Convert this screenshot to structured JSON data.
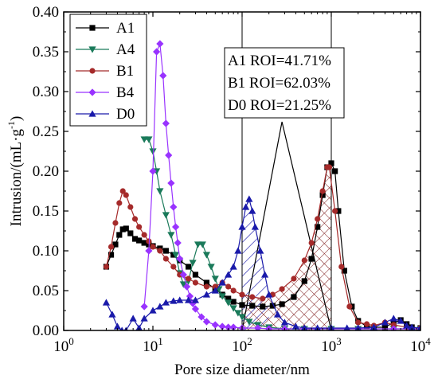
{
  "chart_data": {
    "type": "line",
    "title": "",
    "xlabel": "Pore size diameter/nm",
    "ylabel_main": "Intrusion/(mL·g",
    "ylabel_sup": "-1",
    "ylabel_close": ")",
    "xscale": "log",
    "xlim": [
      1,
      10000
    ],
    "ylim": [
      0,
      0.4
    ],
    "x_ticks": [
      {
        "value": 1,
        "base": "10",
        "exp": "0"
      },
      {
        "value": 10,
        "base": "10",
        "exp": "1"
      },
      {
        "value": 100,
        "base": "10",
        "exp": "2"
      },
      {
        "value": 1000,
        "base": "10",
        "exp": "3"
      },
      {
        "value": 10000,
        "base": "10",
        "exp": "4"
      }
    ],
    "y_ticks": [
      "0.00",
      "0.05",
      "0.10",
      "0.15",
      "0.20",
      "0.25",
      "0.30",
      "0.35",
      "0.40"
    ],
    "grid": false,
    "legend_position": "top-left",
    "series": [
      {
        "name": "A1",
        "color": "#000000",
        "marker": "square",
        "x": [
          3,
          3.4,
          3.8,
          4.2,
          4.6,
          5,
          5.6,
          6.3,
          7,
          8,
          9,
          10,
          12,
          14,
          17,
          20,
          25,
          30,
          40,
          50,
          60,
          70,
          80,
          100,
          130,
          170,
          220,
          280,
          380,
          500,
          600,
          700,
          800,
          900,
          1000,
          1100,
          1200,
          1400,
          1700,
          2000,
          2500,
          3000,
          4000,
          5000,
          6000,
          7000,
          8000,
          10000
        ],
        "y": [
          0.08,
          0.095,
          0.108,
          0.12,
          0.127,
          0.128,
          0.122,
          0.115,
          0.113,
          0.11,
          0.108,
          0.106,
          0.103,
          0.1,
          0.095,
          0.088,
          0.08,
          0.07,
          0.06,
          0.052,
          0.045,
          0.04,
          0.036,
          0.032,
          0.031,
          0.03,
          0.031,
          0.033,
          0.042,
          0.062,
          0.09,
          0.13,
          0.17,
          0.205,
          0.21,
          0.2,
          0.15,
          0.075,
          0.03,
          0.012,
          0.005,
          0.004,
          0.004,
          0.01,
          0.013,
          0.008,
          0.004,
          0.003
        ]
      },
      {
        "name": "A4",
        "color": "#1a7a5a",
        "marker": "triangle-down",
        "x": [
          8,
          9,
          10,
          11,
          12,
          14,
          16,
          18,
          20,
          22,
          25,
          28,
          32,
          36,
          40,
          45,
          50,
          55,
          60,
          70,
          80,
          90,
          100,
          120,
          150,
          200,
          300,
          500,
          1000,
          2000,
          5000,
          10000
        ],
        "y": [
          0.24,
          0.24,
          0.225,
          0.2,
          0.175,
          0.145,
          0.12,
          0.095,
          0.072,
          0.058,
          0.062,
          0.085,
          0.108,
          0.108,
          0.095,
          0.08,
          0.065,
          0.052,
          0.043,
          0.035,
          0.028,
          0.022,
          0.017,
          0.011,
          0.007,
          0.004,
          0.002,
          0.002,
          0.002,
          0.002,
          0.002,
          0.002
        ]
      },
      {
        "name": "B1",
        "color": "#a52a2a",
        "marker": "circle",
        "x": [
          3,
          3.4,
          3.8,
          4.2,
          4.6,
          5,
          5.6,
          6.3,
          7,
          8,
          9,
          10,
          12,
          14,
          17,
          20,
          25,
          30,
          40,
          50,
          60,
          70,
          80,
          100,
          130,
          170,
          220,
          280,
          380,
          500,
          600,
          700,
          800,
          900,
          950,
          1100,
          1300,
          1600,
          2000,
          2500,
          3000,
          4000,
          5000,
          7000,
          10000
        ],
        "y": [
          0.08,
          0.105,
          0.135,
          0.16,
          0.175,
          0.17,
          0.155,
          0.14,
          0.13,
          0.12,
          0.112,
          0.105,
          0.1,
          0.09,
          0.08,
          0.07,
          0.065,
          0.06,
          0.055,
          0.055,
          0.06,
          0.055,
          0.05,
          0.045,
          0.042,
          0.04,
          0.045,
          0.052,
          0.065,
          0.088,
          0.11,
          0.14,
          0.175,
          0.205,
          0.205,
          0.15,
          0.08,
          0.03,
          0.01,
          0.008,
          0.006,
          0.01,
          0.007,
          0.004,
          0.003
        ]
      },
      {
        "name": "B4",
        "color": "#9933ff",
        "marker": "diamond",
        "x": [
          8,
          9,
          10,
          11,
          12,
          13,
          14,
          15,
          16,
          17,
          18,
          19,
          20,
          22,
          24,
          26,
          28,
          30,
          35,
          40,
          50,
          60,
          70,
          80,
          100,
          150,
          200,
          300,
          500,
          1000,
          2000,
          5000,
          10000
        ],
        "y": [
          0.03,
          0.1,
          0.2,
          0.35,
          0.36,
          0.32,
          0.26,
          0.22,
          0.185,
          0.155,
          0.13,
          0.11,
          0.09,
          0.07,
          0.055,
          0.043,
          0.034,
          0.027,
          0.017,
          0.011,
          0.007,
          0.005,
          0.004,
          0.004,
          0.003,
          0.003,
          0.002,
          0.002,
          0.002,
          0.002,
          0.002,
          0.002,
          0.002
        ]
      },
      {
        "name": "D0",
        "color": "#1a1aaa",
        "marker": "triangle-up",
        "x": [
          3,
          3.5,
          4,
          4.5,
          5,
          6,
          7,
          8,
          10,
          12,
          14,
          17,
          20,
          25,
          30,
          40,
          50,
          60,
          70,
          80,
          90,
          100,
          110,
          120,
          130,
          140,
          160,
          180,
          200,
          250,
          300,
          400,
          500,
          700,
          1000,
          1500,
          2000,
          3000,
          4000,
          5000,
          6000,
          7000,
          8000,
          10000
        ],
        "y": [
          0.035,
          0.02,
          0.005,
          0.0,
          0.0,
          0.015,
          0.003,
          0.015,
          0.025,
          0.03,
          0.035,
          0.037,
          0.038,
          0.038,
          0.038,
          0.045,
          0.05,
          0.06,
          0.07,
          0.08,
          0.1,
          0.13,
          0.155,
          0.165,
          0.15,
          0.13,
          0.1,
          0.07,
          0.045,
          0.02,
          0.01,
          0.005,
          0.003,
          0.003,
          0.003,
          0.003,
          0.003,
          0.004,
          0.01,
          0.015,
          0.012,
          0.006,
          0.004,
          0.003
        ]
      }
    ],
    "reference_lines_x": [
      100,
      1000
    ],
    "hatched_regions": [
      {
        "series": "D0",
        "pattern": "diagonal",
        "color": "#1a1aaa",
        "x_from": 100,
        "x_to": 200
      },
      {
        "series": "A1",
        "pattern": "none",
        "color": "#000000",
        "x_from": 100,
        "x_to": 1000
      },
      {
        "series": "B1",
        "pattern": "cross",
        "color": "#8b1a1a",
        "x_from": 100,
        "x_to": 1000
      }
    ],
    "a1_peak_line": {
      "x": [
        100,
        280,
        1000
      ],
      "y": [
        0.0,
        0.262,
        0.0
      ]
    },
    "annotations": [
      "A1 ROI=41.71%",
      "B1 ROI=62.03%",
      "D0 ROI=21.25%"
    ]
  }
}
